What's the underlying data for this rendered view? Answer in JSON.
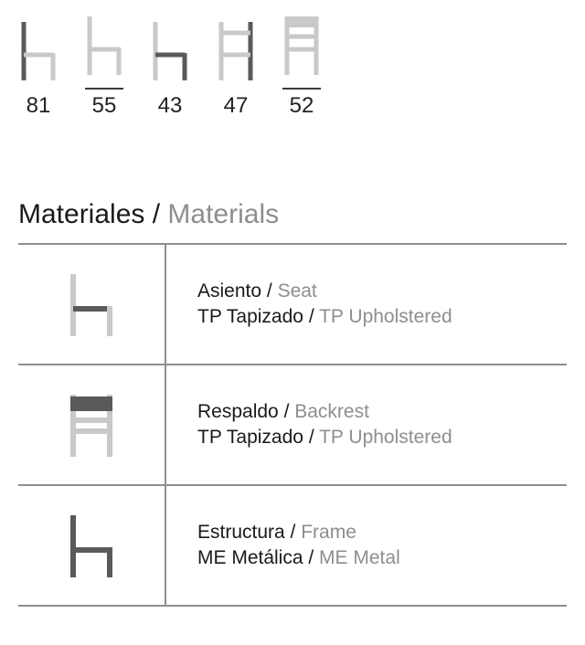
{
  "dims": [
    {
      "value": "81",
      "underline": false,
      "icon": "side-tall"
    },
    {
      "value": "55",
      "underline": true,
      "icon": "side"
    },
    {
      "value": "43",
      "underline": false,
      "icon": "side-seat"
    },
    {
      "value": "47",
      "underline": false,
      "icon": "front"
    },
    {
      "value": "52",
      "underline": true,
      "icon": "front-back"
    }
  ],
  "section": {
    "es": "Materiales",
    "en": "Materials"
  },
  "materials": [
    {
      "icon": "seat",
      "l1_es": "Asiento",
      "l1_en": "Seat",
      "l2_es": "TP Tapizado",
      "l2_en": "TP Upholstered"
    },
    {
      "icon": "back",
      "l1_es": "Respaldo",
      "l1_en": "Backrest",
      "l2_es": "TP Tapizado",
      "l2_en": "TP Upholstered"
    },
    {
      "icon": "frame",
      "l1_es": "Estructura",
      "l1_en": "Frame",
      "l2_es": "ME Metálica",
      "l2_en": "ME Metal"
    }
  ],
  "colors": {
    "light": "#c9c9c9",
    "dark": "#5a5a5a",
    "fill": "#5a5a5a"
  }
}
